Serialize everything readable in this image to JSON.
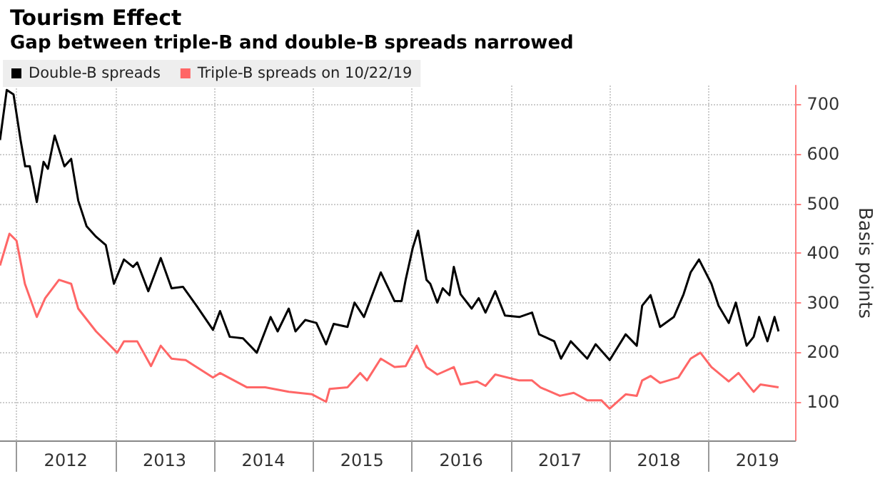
{
  "chart_data": {
    "type": "line",
    "title": "Tourism Effect",
    "subtitle": "Gap between triple-B and double-B spreads narrowed",
    "ylabel": "Basis points",
    "xlim": [
      "2011-11-01",
      "2019-11-18"
    ],
    "ylim": [
      22,
      738
    ],
    "yticks": [
      100,
      200,
      300,
      400,
      500,
      600,
      700
    ],
    "xticks": [
      {
        "value": "2012-01-01",
        "label": null
      },
      {
        "value": "2012-07-01",
        "label": "2012"
      },
      {
        "value": "2013-01-01",
        "label": null
      },
      {
        "value": "2013-07-01",
        "label": "2013"
      },
      {
        "value": "2014-01-01",
        "label": null
      },
      {
        "value": "2014-07-01",
        "label": "2014"
      },
      {
        "value": "2015-01-01",
        "label": null
      },
      {
        "value": "2015-07-01",
        "label": "2015"
      },
      {
        "value": "2016-01-01",
        "label": null
      },
      {
        "value": "2016-07-01",
        "label": "2016"
      },
      {
        "value": "2017-01-01",
        "label": null
      },
      {
        "value": "2017-07-01",
        "label": "2017"
      },
      {
        "value": "2018-01-01",
        "label": null
      },
      {
        "value": "2018-07-01",
        "label": "2018"
      },
      {
        "value": "2019-01-01",
        "label": null
      },
      {
        "value": "2019-07-01",
        "label": "2019"
      }
    ],
    "grid": true,
    "legend": "top left",
    "series": [
      {
        "name": "Double-B spreads",
        "color": "#000000",
        "x": [
          "2011-11-01",
          "2011-11-26",
          "2011-12-21",
          "2012-01-16",
          "2012-02-02",
          "2012-02-19",
          "2012-03-16",
          "2012-04-10",
          "2012-04-26",
          "2012-05-21",
          "2012-06-26",
          "2012-07-21",
          "2012-08-16",
          "2012-09-16",
          "2012-10-21",
          "2012-11-26",
          "2012-12-26",
          "2013-02-01",
          "2013-03-07",
          "2013-03-22",
          "2013-05-02",
          "2013-06-17",
          "2013-07-27",
          "2013-09-07",
          "2013-10-27",
          "2013-12-27",
          "2014-01-22",
          "2014-02-27",
          "2014-04-17",
          "2014-06-07",
          "2014-07-28",
          "2014-08-23",
          "2014-10-03",
          "2014-10-28",
          "2014-12-03",
          "2015-01-13",
          "2015-02-18",
          "2015-03-18",
          "2015-05-08",
          "2015-06-03",
          "2015-07-08",
          "2015-08-03",
          "2015-09-08",
          "2015-10-29",
          "2015-11-24",
          "2015-12-09",
          "2016-01-04",
          "2016-01-24",
          "2016-02-24",
          "2016-03-09",
          "2016-04-04",
          "2016-04-24",
          "2016-05-19",
          "2016-06-04",
          "2016-06-29",
          "2016-08-09",
          "2016-09-04",
          "2016-09-29",
          "2016-11-04",
          "2016-12-10",
          "2017-02-01",
          "2017-03-20",
          "2017-04-15",
          "2017-06-10",
          "2017-07-05",
          "2017-08-10",
          "2017-10-10",
          "2017-11-10",
          "2018-01-01",
          "2018-03-01",
          "2018-04-11",
          "2018-05-01",
          "2018-06-01",
          "2018-07-06",
          "2018-08-26",
          "2018-10-01",
          "2018-10-27",
          "2018-11-27",
          "2019-01-12",
          "2019-02-07",
          "2019-03-17",
          "2019-04-12",
          "2019-05-22",
          "2019-06-17",
          "2019-07-07",
          "2019-08-07",
          "2019-09-02",
          "2019-09-17"
        ],
        "values": [
          628,
          729,
          720,
          628,
          575,
          575,
          503,
          584,
          570,
          637,
          575,
          590,
          506,
          454,
          433,
          416,
          338,
          387,
          372,
          381,
          323,
          390,
          329,
          332,
          294,
          245,
          283,
          231,
          228,
          199,
          271,
          242,
          288,
          242,
          265,
          259,
          216,
          257,
          251,
          300,
          271,
          309,
          361,
          303,
          303,
          346,
          410,
          445,
          346,
          338,
          300,
          329,
          315,
          372,
          317,
          288,
          309,
          280,
          323,
          274,
          271,
          280,
          236,
          222,
          187,
          222,
          187,
          216,
          184,
          236,
          213,
          294,
          315,
          251,
          271,
          317,
          361,
          387,
          338,
          294,
          259,
          300,
          213,
          231,
          271,
          222,
          271,
          242
        ]
      },
      {
        "name": "Triple-B spreads on 10/22/19",
        "color": "#ff6666",
        "x": [
          "2011-11-01",
          "2011-12-06",
          "2012-01-01",
          "2012-02-01",
          "2012-03-16",
          "2012-04-16",
          "2012-06-06",
          "2012-07-21",
          "2012-08-16",
          "2012-10-21",
          "2013-01-07",
          "2013-02-01",
          "2013-03-22",
          "2013-05-12",
          "2013-06-17",
          "2013-07-27",
          "2013-09-17",
          "2013-12-27",
          "2014-01-22",
          "2014-05-02",
          "2014-07-08",
          "2014-10-03",
          "2014-12-28",
          "2015-02-18",
          "2015-03-03",
          "2015-05-08",
          "2015-06-24",
          "2015-07-19",
          "2015-09-08",
          "2015-10-29",
          "2015-12-09",
          "2016-01-19",
          "2016-02-24",
          "2016-04-04",
          "2016-06-04",
          "2016-06-29",
          "2016-08-29",
          "2016-09-29",
          "2016-11-04",
          "2017-02-01",
          "2017-03-20",
          "2017-04-20",
          "2017-07-01",
          "2017-08-21",
          "2017-10-10",
          "2017-12-01",
          "2018-01-01",
          "2018-03-01",
          "2018-04-11",
          "2018-05-01",
          "2018-06-01",
          "2018-07-06",
          "2018-09-12",
          "2018-10-27",
          "2018-12-02",
          "2019-01-12",
          "2019-03-17",
          "2019-04-22",
          "2019-06-17",
          "2019-07-12",
          "2019-09-17"
        ],
        "values": [
          375,
          439,
          425,
          338,
          271,
          309,
          346,
          338,
          288,
          242,
          199,
          222,
          222,
          172,
          213,
          187,
          184,
          149,
          158,
          129,
          129,
          120,
          115,
          100,
          126,
          129,
          158,
          143,
          187,
          170,
          172,
          213,
          170,
          155,
          170,
          135,
          141,
          132,
          155,
          143,
          143,
          129,
          112,
          118,
          103,
          103,
          86,
          115,
          112,
          143,
          152,
          138,
          149,
          187,
          199,
          170,
          141,
          158,
          120,
          135,
          129
        ]
      }
    ]
  }
}
